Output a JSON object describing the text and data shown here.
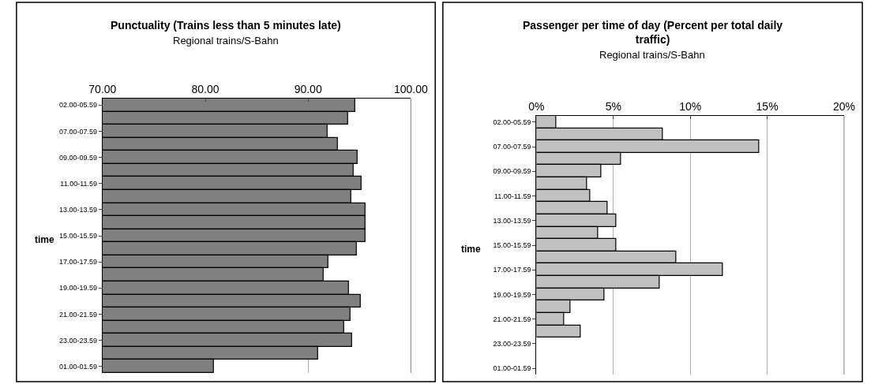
{
  "chart_data": [
    {
      "type": "bar",
      "orientation": "horizontal",
      "title": "Punctuality (Trains less than 5 minutes late)",
      "subtitle": "Regional trains/S-Bahn",
      "ylabel": "time",
      "categories": [
        "02.00-05.59",
        null,
        "07.00-07.59",
        null,
        "09.00-09.59",
        null,
        "11.00-11.59",
        null,
        "13.00-13.59",
        null,
        "15.00-15.59",
        null,
        "17.00-17.59",
        null,
        "19.00-19.59",
        null,
        "21.00-21.59",
        null,
        "23.00-23.59",
        null,
        "01.00-01.59"
      ],
      "values": [
        94.6,
        93.9,
        91.9,
        92.9,
        94.8,
        94.4,
        95.2,
        94.2,
        95.6,
        95.6,
        95.6,
        94.7,
        92.0,
        91.5,
        94.0,
        95.1,
        94.1,
        93.5,
        94.3,
        91.0,
        80.8
      ],
      "color": "#808080",
      "xlim": [
        70,
        100
      ],
      "xticks": [
        {
          "value": 70,
          "label": "70.00"
        },
        {
          "value": 80,
          "label": "80.00"
        },
        {
          "value": 90,
          "label": "90.00"
        },
        {
          "value": 100,
          "label": "100.00"
        }
      ],
      "grid": "x"
    },
    {
      "type": "bar",
      "orientation": "horizontal",
      "title": "Passenger per time of day (Percent per total daily traffic)",
      "subtitle": "Regional trains/S-Bahn",
      "ylabel": "time",
      "categories": [
        "02.00-05.59",
        null,
        "07.00-07.59",
        null,
        "09.00-09.59",
        null,
        "11.00-11.59",
        null,
        "13.00-13.59",
        null,
        "15.00-15.59",
        null,
        "17.00-17.59",
        null,
        "19.00-19.59",
        null,
        "21.00-21.59",
        null,
        "23.00-23.59",
        null,
        "01.00-01.59"
      ],
      "values": [
        1.3,
        8.2,
        14.5,
        5.5,
        4.2,
        3.3,
        3.5,
        4.6,
        5.2,
        4.0,
        5.2,
        9.1,
        12.1,
        8.0,
        4.4,
        2.2,
        1.8,
        2.9,
        null,
        null,
        null
      ],
      "color": "#c0c0c0",
      "xlim": [
        0,
        20
      ],
      "xticks": [
        {
          "value": 0,
          "label": "0%"
        },
        {
          "value": 5,
          "label": "5%"
        },
        {
          "value": 10,
          "label": "10%"
        },
        {
          "value": 15,
          "label": "15%"
        },
        {
          "value": 20,
          "label": "20%"
        }
      ],
      "grid": "x"
    }
  ]
}
